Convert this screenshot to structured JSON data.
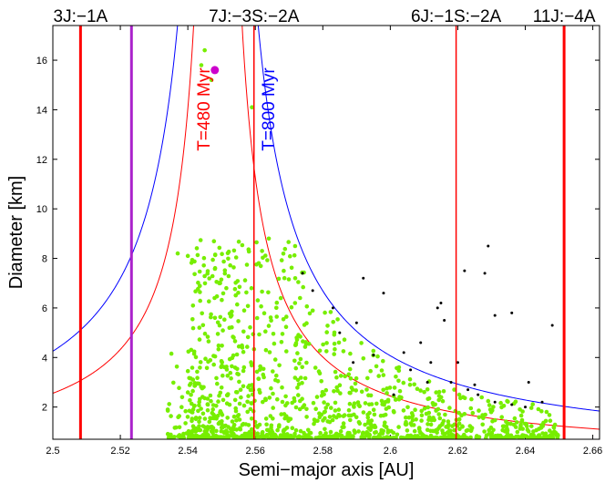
{
  "chart_data": {
    "type": "scatter",
    "xlabel": "Semi−major axis [AU]",
    "ylabel": "Diameter [km]",
    "xlim": [
      2.5,
      2.662
    ],
    "ylim": [
      0.7,
      17.4
    ],
    "x_ticks": [
      2.5,
      2.52,
      2.54,
      2.56,
      2.58,
      2.6,
      2.62,
      2.64,
      2.66
    ],
    "x_tick_labels": [
      "2.5",
      "2.52",
      "2.54",
      "2.56",
      "2.58",
      "2.6",
      "2.62",
      "2.64",
      "2.66"
    ],
    "y_ticks": [
      2,
      4,
      6,
      8,
      10,
      12,
      14,
      16
    ],
    "y_tick_labels": [
      "2",
      "4",
      "6",
      "8",
      "10",
      "12",
      "14",
      "16"
    ],
    "resonances": [
      {
        "label": "3J:−1A",
        "a": 2.5082,
        "color": "#ff0000",
        "width": 3
      },
      {
        "label": "7J:−3S:−2A",
        "a": 2.5596,
        "color": "#ff0000",
        "width": 1.5
      },
      {
        "label": "6J:−1S:−2A",
        "a": 2.6195,
        "color": "#ff0000",
        "width": 1.5
      },
      {
        "label": "11J:−4A",
        "a": 2.6515,
        "color": "#ff0000",
        "width": 3
      }
    ],
    "center_line": {
      "a": 2.5233,
      "color": "#aa22cc"
    },
    "isochrones": [
      {
        "label": "T=480 Myr",
        "color": "#ff0000",
        "a_c": 2.5489,
        "k": 0.125
      },
      {
        "label": "T=800 Myr",
        "color": "#0000ff",
        "a_c": 2.5489,
        "k": 0.208
      }
    ],
    "parent_body": {
      "a": 2.548,
      "d": 15.6,
      "color": "#cc00cc"
    },
    "series": [
      {
        "name": "family members",
        "color": "#77ee00",
        "count": 1300
      },
      {
        "name": "background objects",
        "color": "#000000",
        "points": [
          [
            2.574,
            7.4
          ],
          [
            2.577,
            6.7
          ],
          [
            2.583,
            6.0
          ],
          [
            2.592,
            7.2
          ],
          [
            2.598,
            6.6
          ],
          [
            2.59,
            5.4
          ],
          [
            2.585,
            5.0
          ],
          [
            2.595,
            4.1
          ],
          [
            2.589,
            3.8
          ],
          [
            2.604,
            4.2
          ],
          [
            2.609,
            4.6
          ],
          [
            2.612,
            3.8
          ],
          [
            2.615,
            6.2
          ],
          [
            2.614,
            6.0
          ],
          [
            2.616,
            5.5
          ],
          [
            2.62,
            3.8
          ],
          [
            2.622,
            7.5
          ],
          [
            2.629,
            8.5
          ],
          [
            2.628,
            7.4
          ],
          [
            2.631,
            5.7
          ],
          [
            2.636,
            5.8
          ],
          [
            2.648,
            5.3
          ],
          [
            2.618,
            3.0
          ],
          [
            2.623,
            2.7
          ],
          [
            2.626,
            2.5
          ],
          [
            2.631,
            2.2
          ],
          [
            2.641,
            3.0
          ],
          [
            2.611,
            3.0
          ],
          [
            2.606,
            3.5
          ],
          [
            2.625,
            2.9
          ],
          [
            2.601,
            2.5
          ],
          [
            2.645,
            2.2
          ],
          [
            2.64,
            2.0
          ],
          [
            2.636,
            2.1
          ]
        ]
      }
    ]
  }
}
